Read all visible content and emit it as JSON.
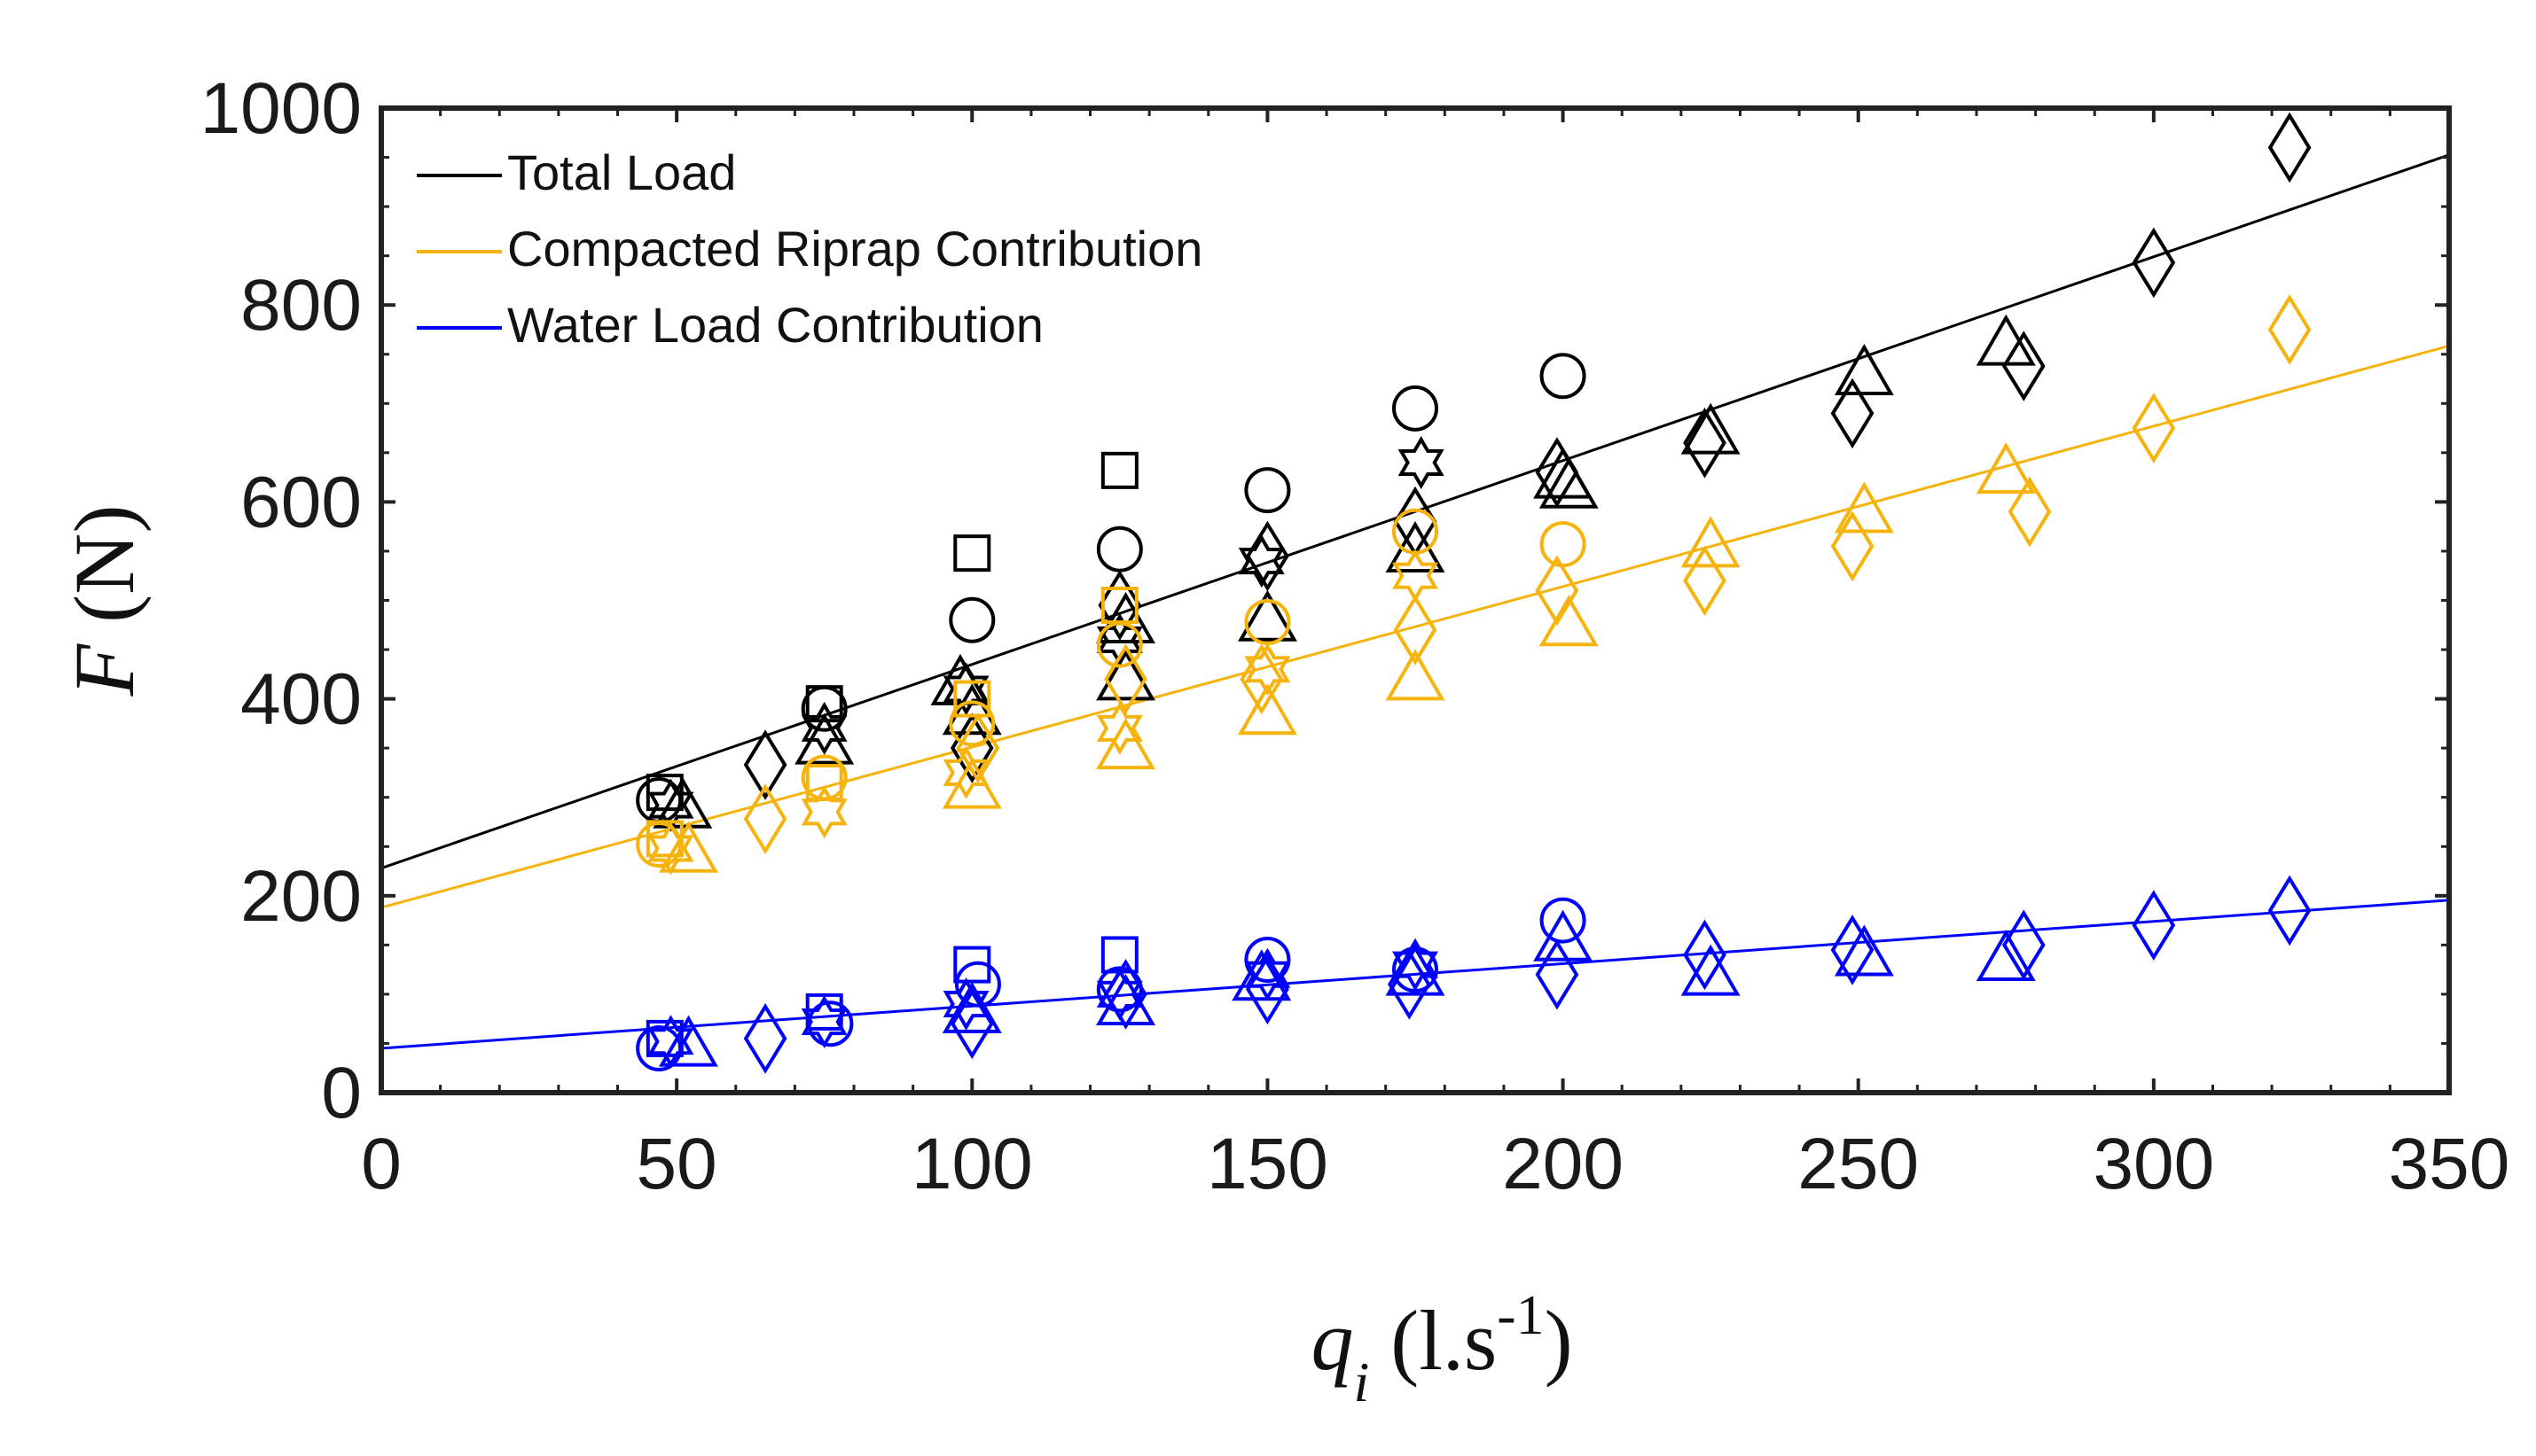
{
  "chart_data": {
    "type": "scatter",
    "title": "",
    "xlabel": {
      "var": "q",
      "sub": "i",
      "unit_prefix": " (l.s",
      "unit_sup": "-1",
      "unit_suffix": ")"
    },
    "ylabel": {
      "var": "F",
      "unit": " (N)"
    },
    "xlim": [
      0,
      350
    ],
    "ylim": [
      0,
      1000
    ],
    "xticks": [
      0,
      50,
      100,
      150,
      200,
      250,
      300,
      350
    ],
    "yticks": [
      0,
      200,
      400,
      600,
      800,
      1000
    ],
    "grid": false,
    "legend_position": "top-left",
    "legend": [
      {
        "label": "Total Load",
        "color": "#000000"
      },
      {
        "label": "Compacted Riprap Contribution",
        "color": "#f5b30b"
      },
      {
        "label": "Water Load Contribution",
        "color": "#0000ff"
      }
    ],
    "series": [
      {
        "name": "Total Load",
        "color": "#000000",
        "fit": {
          "intercept": 228,
          "slope": 2.07
        },
        "points": [
          {
            "x": 47,
            "y": 297,
            "m": "circle"
          },
          {
            "x": 48,
            "y": 305,
            "m": "square"
          },
          {
            "x": 49,
            "y": 292,
            "m": "hexagram"
          },
          {
            "x": 51,
            "y": 290,
            "m": "triangle"
          },
          {
            "x": 65,
            "y": 333,
            "m": "diamond"
          },
          {
            "x": 75,
            "y": 390,
            "m": "circle"
          },
          {
            "x": 75,
            "y": 395,
            "m": "square"
          },
          {
            "x": 75,
            "y": 370,
            "m": "hexagram"
          },
          {
            "x": 75,
            "y": 355,
            "m": "triangle"
          },
          {
            "x": 100,
            "y": 480,
            "m": "circle"
          },
          {
            "x": 100,
            "y": 548,
            "m": "square"
          },
          {
            "x": 99,
            "y": 410,
            "m": "hexagram"
          },
          {
            "x": 98,
            "y": 415,
            "m": "triangle"
          },
          {
            "x": 100,
            "y": 385,
            "m": "triangle"
          },
          {
            "x": 100,
            "y": 350,
            "m": "diamond"
          },
          {
            "x": 125,
            "y": 552,
            "m": "circle"
          },
          {
            "x": 125,
            "y": 632,
            "m": "square"
          },
          {
            "x": 125,
            "y": 460,
            "m": "hexagram"
          },
          {
            "x": 125,
            "y": 495,
            "m": "diamond"
          },
          {
            "x": 126,
            "y": 478,
            "m": "triangle"
          },
          {
            "x": 126,
            "y": 420,
            "m": "triangle"
          },
          {
            "x": 150,
            "y": 612,
            "m": "circle"
          },
          {
            "x": 150,
            "y": 545,
            "m": "diamond"
          },
          {
            "x": 149,
            "y": 540,
            "m": "hexagram"
          },
          {
            "x": 150,
            "y": 480,
            "m": "triangle"
          },
          {
            "x": 175,
            "y": 695,
            "m": "circle"
          },
          {
            "x": 176,
            "y": 640,
            "m": "hexagram"
          },
          {
            "x": 175,
            "y": 580,
            "m": "diamond"
          },
          {
            "x": 175,
            "y": 550,
            "m": "triangle"
          },
          {
            "x": 200,
            "y": 728,
            "m": "circle"
          },
          {
            "x": 199,
            "y": 630,
            "m": "diamond"
          },
          {
            "x": 200,
            "y": 625,
            "m": "triangle"
          },
          {
            "x": 201,
            "y": 615,
            "m": "triangle"
          },
          {
            "x": 224,
            "y": 660,
            "m": "diamond"
          },
          {
            "x": 225,
            "y": 670,
            "m": "triangle"
          },
          {
            "x": 249,
            "y": 690,
            "m": "diamond"
          },
          {
            "x": 251,
            "y": 730,
            "m": "triangle"
          },
          {
            "x": 275,
            "y": 760,
            "m": "triangle"
          },
          {
            "x": 278,
            "y": 738,
            "m": "diamond"
          },
          {
            "x": 300,
            "y": 843,
            "m": "diamond"
          },
          {
            "x": 323,
            "y": 960,
            "m": "diamond"
          }
        ]
      },
      {
        "name": "Compacted Riprap Contribution",
        "color": "#f5b30b",
        "fit": {
          "intercept": 188,
          "slope": 1.63
        },
        "points": [
          {
            "x": 47,
            "y": 252,
            "m": "circle"
          },
          {
            "x": 48,
            "y": 258,
            "m": "square"
          },
          {
            "x": 49,
            "y": 248,
            "m": "hexagram"
          },
          {
            "x": 52,
            "y": 245,
            "m": "triangle"
          },
          {
            "x": 65,
            "y": 278,
            "m": "diamond"
          },
          {
            "x": 75,
            "y": 320,
            "m": "circle"
          },
          {
            "x": 75,
            "y": 315,
            "m": "square"
          },
          {
            "x": 75,
            "y": 285,
            "m": "hexagram"
          },
          {
            "x": 100,
            "y": 375,
            "m": "circle"
          },
          {
            "x": 100,
            "y": 400,
            "m": "square"
          },
          {
            "x": 99,
            "y": 325,
            "m": "hexagram"
          },
          {
            "x": 100,
            "y": 310,
            "m": "triangle"
          },
          {
            "x": 101,
            "y": 350,
            "m": "diamond"
          },
          {
            "x": 125,
            "y": 455,
            "m": "circle"
          },
          {
            "x": 125,
            "y": 495,
            "m": "square"
          },
          {
            "x": 125,
            "y": 370,
            "m": "hexagram"
          },
          {
            "x": 126,
            "y": 420,
            "m": "diamond"
          },
          {
            "x": 126,
            "y": 350,
            "m": "triangle"
          },
          {
            "x": 150,
            "y": 478,
            "m": "circle"
          },
          {
            "x": 150,
            "y": 430,
            "m": "hexagram"
          },
          {
            "x": 149,
            "y": 420,
            "m": "diamond"
          },
          {
            "x": 150,
            "y": 385,
            "m": "triangle"
          },
          {
            "x": 175,
            "y": 570,
            "m": "circle"
          },
          {
            "x": 175,
            "y": 525,
            "m": "hexagram"
          },
          {
            "x": 175,
            "y": 470,
            "m": "diamond"
          },
          {
            "x": 175,
            "y": 420,
            "m": "triangle"
          },
          {
            "x": 200,
            "y": 557,
            "m": "circle"
          },
          {
            "x": 199,
            "y": 510,
            "m": "diamond"
          },
          {
            "x": 201,
            "y": 475,
            "m": "triangle"
          },
          {
            "x": 224,
            "y": 520,
            "m": "diamond"
          },
          {
            "x": 225,
            "y": 555,
            "m": "triangle"
          },
          {
            "x": 249,
            "y": 555,
            "m": "diamond"
          },
          {
            "x": 251,
            "y": 590,
            "m": "triangle"
          },
          {
            "x": 275,
            "y": 630,
            "m": "triangle"
          },
          {
            "x": 279,
            "y": 590,
            "m": "diamond"
          },
          {
            "x": 300,
            "y": 675,
            "m": "diamond"
          },
          {
            "x": 323,
            "y": 775,
            "m": "diamond"
          }
        ]
      },
      {
        "name": "Water Load Contribution",
        "color": "#0000ff",
        "fit": {
          "intercept": 45,
          "slope": 0.43
        },
        "points": [
          {
            "x": 47,
            "y": 45,
            "m": "circle"
          },
          {
            "x": 48,
            "y": 55,
            "m": "square"
          },
          {
            "x": 49,
            "y": 52,
            "m": "hexagram"
          },
          {
            "x": 52,
            "y": 48,
            "m": "triangle"
          },
          {
            "x": 65,
            "y": 55,
            "m": "diamond"
          },
          {
            "x": 76,
            "y": 70,
            "m": "circle"
          },
          {
            "x": 75,
            "y": 82,
            "m": "square"
          },
          {
            "x": 75,
            "y": 72,
            "m": "hexagram"
          },
          {
            "x": 101,
            "y": 110,
            "m": "circle"
          },
          {
            "x": 100,
            "y": 130,
            "m": "square"
          },
          {
            "x": 99,
            "y": 90,
            "m": "hexagram"
          },
          {
            "x": 100,
            "y": 82,
            "m": "triangle"
          },
          {
            "x": 100,
            "y": 70,
            "m": "diamond"
          },
          {
            "x": 125,
            "y": 105,
            "m": "circle"
          },
          {
            "x": 125,
            "y": 140,
            "m": "square"
          },
          {
            "x": 125,
            "y": 100,
            "m": "hexagram"
          },
          {
            "x": 126,
            "y": 100,
            "m": "diamond"
          },
          {
            "x": 126,
            "y": 90,
            "m": "triangle"
          },
          {
            "x": 150,
            "y": 135,
            "m": "circle"
          },
          {
            "x": 150,
            "y": 120,
            "m": "hexagram"
          },
          {
            "x": 149,
            "y": 115,
            "m": "triangle"
          },
          {
            "x": 150,
            "y": 105,
            "m": "diamond"
          },
          {
            "x": 175,
            "y": 125,
            "m": "circle"
          },
          {
            "x": 175,
            "y": 130,
            "m": "hexagram"
          },
          {
            "x": 175,
            "y": 120,
            "m": "triangle"
          },
          {
            "x": 174,
            "y": 110,
            "m": "diamond"
          },
          {
            "x": 200,
            "y": 175,
            "m": "circle"
          },
          {
            "x": 200,
            "y": 155,
            "m": "triangle"
          },
          {
            "x": 199,
            "y": 120,
            "m": "diamond"
          },
          {
            "x": 224,
            "y": 140,
            "m": "diamond"
          },
          {
            "x": 225,
            "y": 120,
            "m": "triangle"
          },
          {
            "x": 249,
            "y": 145,
            "m": "diamond"
          },
          {
            "x": 251,
            "y": 140,
            "m": "triangle"
          },
          {
            "x": 275,
            "y": 135,
            "m": "triangle"
          },
          {
            "x": 278,
            "y": 150,
            "m": "diamond"
          },
          {
            "x": 300,
            "y": 170,
            "m": "diamond"
          },
          {
            "x": 323,
            "y": 185,
            "m": "diamond"
          }
        ]
      }
    ]
  }
}
